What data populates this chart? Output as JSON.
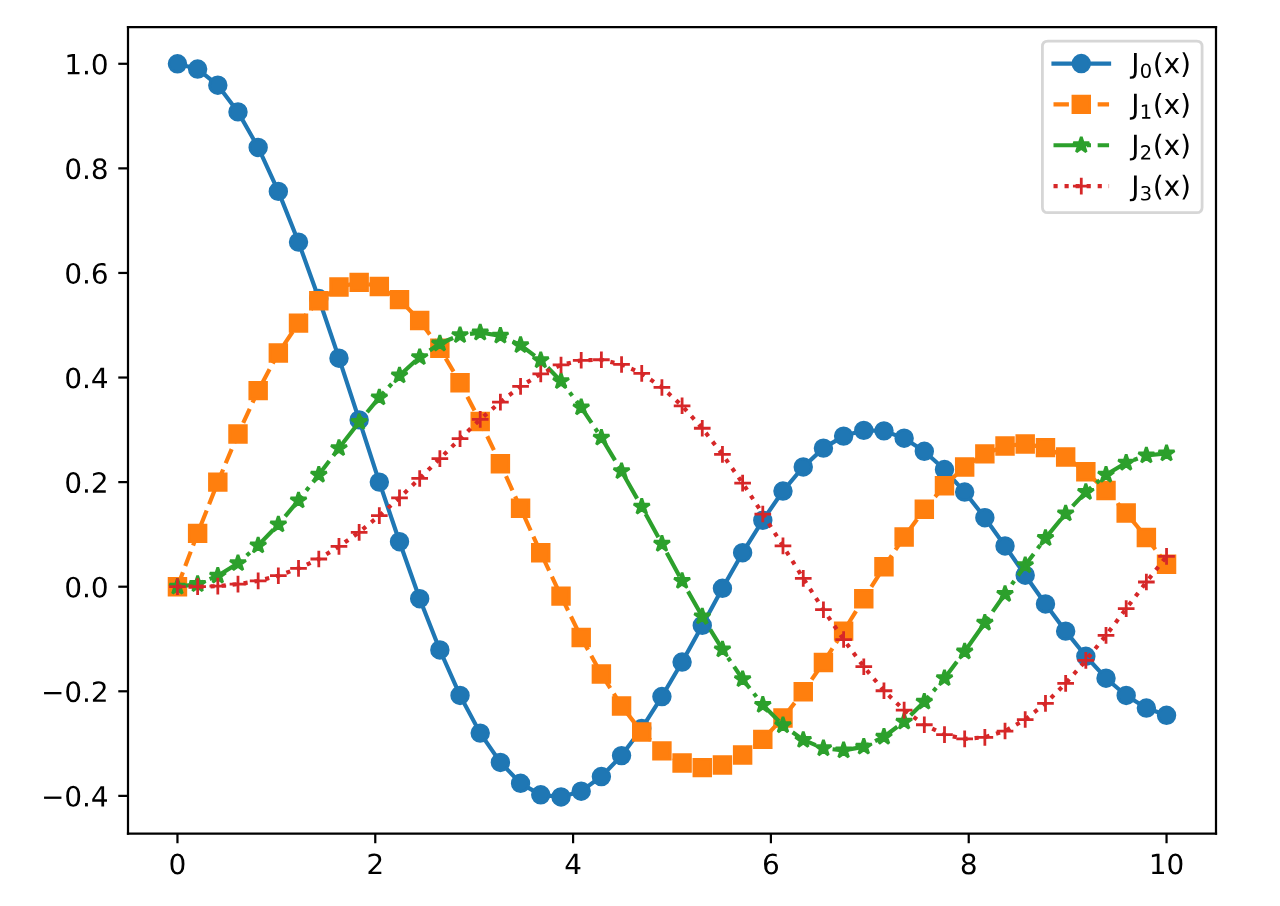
{
  "chart_data": {
    "type": "line",
    "x": [
      0,
      0.204,
      0.408,
      0.612,
      0.816,
      1.02,
      1.224,
      1.429,
      1.633,
      1.837,
      2.041,
      2.245,
      2.449,
      2.653,
      2.857,
      3.061,
      3.265,
      3.469,
      3.673,
      3.878,
      4.082,
      4.286,
      4.49,
      4.694,
      4.898,
      5.102,
      5.306,
      5.51,
      5.714,
      5.918,
      6.122,
      6.327,
      6.531,
      6.735,
      6.939,
      7.143,
      7.347,
      7.551,
      7.755,
      7.959,
      8.163,
      8.367,
      8.571,
      8.776,
      8.98,
      9.184,
      9.388,
      9.592,
      9.796,
      10
    ],
    "series": [
      {
        "name": "J$_{0}$(x)",
        "color": "#1f77b4",
        "marker": "circle",
        "line_style": "solid",
        "values": [
          1.0,
          0.99,
          0.959,
          0.908,
          0.84,
          0.756,
          0.659,
          0.551,
          0.437,
          0.319,
          0.2,
          0.086,
          -0.023,
          -0.121,
          -0.208,
          -0.28,
          -0.336,
          -0.376,
          -0.398,
          -0.402,
          -0.391,
          -0.363,
          -0.323,
          -0.271,
          -0.21,
          -0.144,
          -0.074,
          -0.003,
          0.065,
          0.127,
          0.183,
          0.229,
          0.265,
          0.288,
          0.299,
          0.298,
          0.284,
          0.259,
          0.224,
          0.181,
          0.132,
          0.078,
          0.022,
          -0.033,
          -0.085,
          -0.133,
          -0.175,
          -0.208,
          -0.232,
          -0.246
        ]
      },
      {
        "name": "J$_{1}$(x)",
        "color": "#ff7f0e",
        "marker": "square",
        "line_style": "dashed",
        "values": [
          0.0,
          0.102,
          0.2,
          0.292,
          0.375,
          0.447,
          0.504,
          0.547,
          0.573,
          0.582,
          0.574,
          0.549,
          0.509,
          0.456,
          0.39,
          0.316,
          0.235,
          0.15,
          0.065,
          -0.018,
          -0.097,
          -0.167,
          -0.228,
          -0.278,
          -0.314,
          -0.337,
          -0.346,
          -0.341,
          -0.322,
          -0.292,
          -0.251,
          -0.201,
          -0.145,
          -0.085,
          -0.023,
          0.038,
          0.095,
          0.148,
          0.193,
          0.229,
          0.254,
          0.269,
          0.273,
          0.266,
          0.248,
          0.22,
          0.184,
          0.141,
          0.094,
          0.043
        ]
      },
      {
        "name": "J$_{2}$(x)",
        "color": "#2ca02c",
        "marker": "star",
        "line_style": "dashdot",
        "values": [
          0.0,
          0.005,
          0.021,
          0.045,
          0.079,
          0.119,
          0.165,
          0.214,
          0.265,
          0.315,
          0.362,
          0.404,
          0.439,
          0.465,
          0.481,
          0.486,
          0.48,
          0.462,
          0.433,
          0.393,
          0.343,
          0.285,
          0.221,
          0.153,
          0.082,
          0.011,
          -0.057,
          -0.12,
          -0.177,
          -0.226,
          -0.265,
          -0.293,
          -0.309,
          -0.313,
          -0.306,
          -0.287,
          -0.258,
          -0.22,
          -0.175,
          -0.124,
          -0.069,
          -0.014,
          0.041,
          0.093,
          0.14,
          0.181,
          0.214,
          0.237,
          0.251,
          0.255
        ]
      },
      {
        "name": "J$_{3}$(x)",
        "color": "#d62728",
        "marker": "cross",
        "line_style": "dotted",
        "values": [
          0.0,
          0.0,
          0.001,
          0.005,
          0.011,
          0.021,
          0.035,
          0.053,
          0.077,
          0.104,
          0.136,
          0.17,
          0.207,
          0.245,
          0.283,
          0.32,
          0.353,
          0.383,
          0.407,
          0.424,
          0.433,
          0.434,
          0.425,
          0.408,
          0.381,
          0.346,
          0.303,
          0.253,
          0.198,
          0.139,
          0.078,
          0.016,
          -0.044,
          -0.101,
          -0.153,
          -0.199,
          -0.236,
          -0.264,
          -0.283,
          -0.291,
          -0.288,
          -0.276,
          -0.254,
          -0.223,
          -0.185,
          -0.141,
          -0.093,
          -0.042,
          0.009,
          0.058
        ]
      }
    ],
    "xlim": [
      -0.5,
      10.5
    ],
    "xticks": [
      0,
      2,
      4,
      6,
      8,
      10
    ],
    "ylim": [
      -0.472,
      1.07
    ],
    "yticks": [
      {
        "value": -0.4,
        "label": "−0.4"
      },
      {
        "value": -0.2,
        "label": "−0.2"
      },
      {
        "value": 0,
        "label": "0.0"
      },
      0.2,
      0.4,
      0.6,
      0.8,
      {
        "value": 1,
        "label": "1.0"
      }
    ],
    "legend": "top right",
    "grid": false
  }
}
